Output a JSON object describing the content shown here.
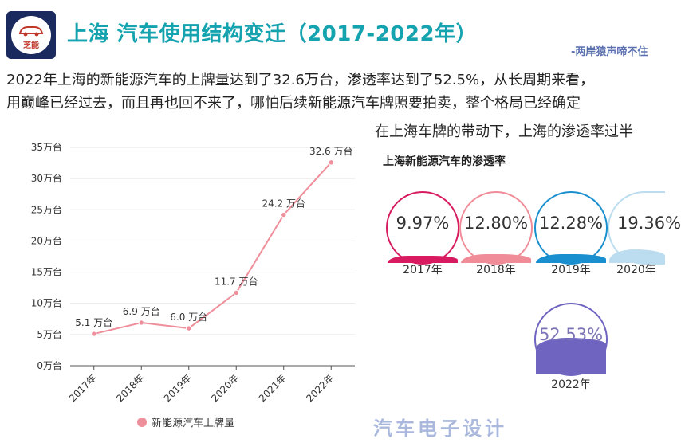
{
  "header": {
    "logo_text": "芝能",
    "title": "上海 汽车使用结构变迁（2017-2022年）",
    "author": "-两岸猿声啼不住"
  },
  "body": {
    "para1": "2022年上海的新能源汽车的上牌量达到了32.6万台，渗透率达到了52.5%，从长周期来看，",
    "para2": "用巅峰已经过去，而且再也回不来了，哪怕后续新能源汽车牌照要拍卖，整个格局已经确定",
    "para3": "在上海车牌的带动下，上海的渗透率过半"
  },
  "penetration": {
    "title": "上海新能源汽车的渗透率",
    "items": [
      {
        "year": "2017年",
        "value_label": "9.97%",
        "value": 9.97,
        "color": "#d81b60"
      },
      {
        "year": "2018年",
        "value_label": "12.80%",
        "value": 12.8,
        "color": "#f08c98"
      },
      {
        "year": "2019年",
        "value_label": "12.28%",
        "value": 12.28,
        "color": "#1a8fcf"
      },
      {
        "year": "2020年",
        "value_label": "19.36%",
        "value": 19.36,
        "color": "#bcdcef"
      },
      {
        "year": "2022年",
        "value_label": "52.53%",
        "value": 52.53,
        "color": "#6f64c0"
      }
    ]
  },
  "watermark": "汽车电子设计",
  "chart_data": {
    "type": "line",
    "title": "",
    "xlabel": "",
    "ylabel": "",
    "categories": [
      "2017年",
      "2018年",
      "2019年",
      "2020年",
      "2021年",
      "2022年"
    ],
    "series": [
      {
        "name": "新能源汽车上牌量",
        "values": [
          5.1,
          6.9,
          6.0,
          11.7,
          24.2,
          32.6
        ],
        "labels": [
          "5.1 万台",
          "6.9 万台",
          "6.0 万台",
          "11.7 万台",
          "24.2 万台",
          "32.6 万台"
        ],
        "color": "#ef8f9b"
      }
    ],
    "yticks": [
      "0万台",
      "5万台",
      "10万台",
      "15万台",
      "20万台",
      "25万台",
      "30万台",
      "35万台"
    ],
    "ylim": [
      0,
      35
    ],
    "grid": true,
    "legend": "bottom-center"
  }
}
